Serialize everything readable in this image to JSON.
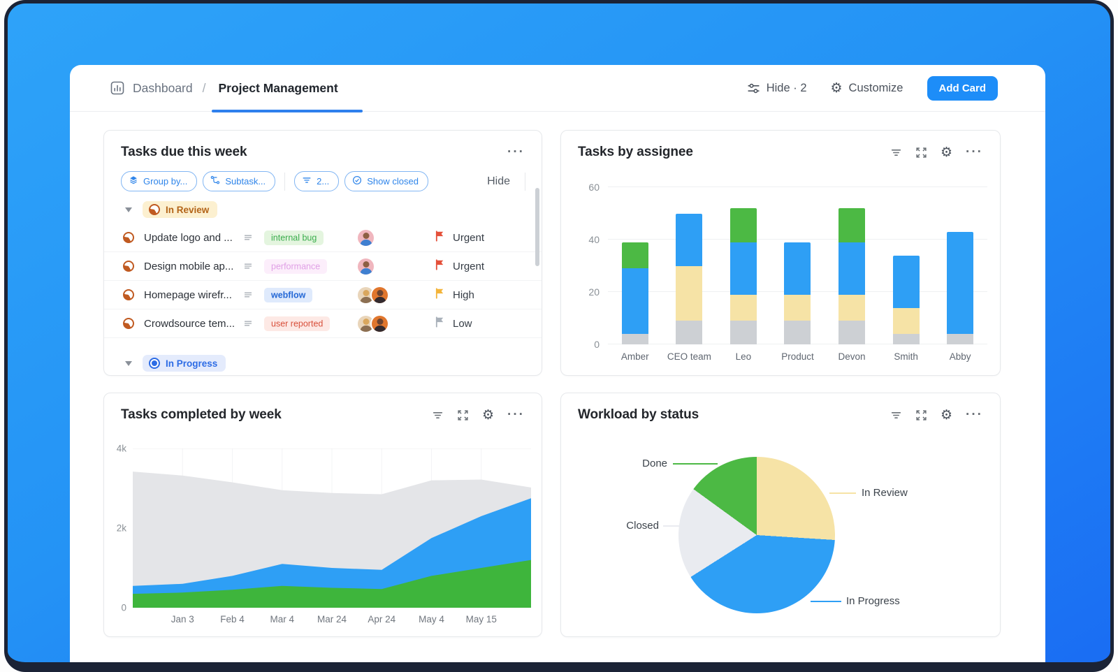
{
  "app": {
    "header": {
      "breadcrumb_root": "Dashboard",
      "breadcrumb_sep": "/",
      "breadcrumb_current": "Project Management",
      "hide_count_label": "Hide · 2",
      "customize_label": "Customize",
      "add_card_label": "Add Card"
    }
  },
  "icons": {
    "ellipsis": "···",
    "gear": "⚙"
  },
  "tasks_card": {
    "title": "Tasks due this week",
    "chips": [
      {
        "label": "Group by...",
        "icon": "layers-icon"
      },
      {
        "label": "Subtask...",
        "icon": "subtask-icon"
      },
      {
        "label": "2...",
        "icon": "filter-icon"
      },
      {
        "label": "Show closed",
        "icon": "check-circle-icon"
      }
    ],
    "hide_label": "Hide",
    "sections": [
      {
        "label": "In Review",
        "status_style": "review",
        "tasks": [
          {
            "name": "Update logo and ...",
            "tag": "internal bug",
            "tag_style": "green",
            "avatars": [
              "man-pink"
            ],
            "priority": "Urgent",
            "flag": "urgent"
          },
          {
            "name": "Design mobile ap...",
            "tag": "performance",
            "tag_style": "pink",
            "avatars": [
              "man-pink"
            ],
            "priority": "Urgent",
            "flag": "urgent"
          },
          {
            "name": "Homepage wirefr...",
            "tag": "webflow",
            "tag_style": "blue",
            "avatars": [
              "woman-blonde",
              "man-orange"
            ],
            "priority": "High",
            "flag": "high"
          },
          {
            "name": "Crowdsource tem...",
            "tag": "user reported",
            "tag_style": "red",
            "avatars": [
              "woman-blonde",
              "man-orange"
            ],
            "priority": "Low",
            "flag": "low"
          }
        ]
      },
      {
        "label": "In Progress",
        "status_style": "progress",
        "tasks": []
      }
    ]
  },
  "assignee_card": {
    "title": "Tasks by assignee"
  },
  "completed_card": {
    "title": "Tasks completed by week"
  },
  "workload_card": {
    "title": "Workload by status"
  },
  "chart_data": [
    {
      "type": "bar",
      "title": "Tasks by assignee",
      "stacked": true,
      "categories": [
        "Amber",
        "CEO team",
        "Leo",
        "Product",
        "Devon",
        "Smith",
        "Abby"
      ],
      "series": [
        {
          "name": "gray",
          "color": "#cdd0d4",
          "values": [
            4,
            9,
            9,
            9,
            9,
            4,
            4
          ]
        },
        {
          "name": "tan",
          "color": "#f6e3a6",
          "values": [
            0,
            21,
            10,
            10,
            10,
            10,
            0
          ]
        },
        {
          "name": "blue",
          "color": "#2e9ff5",
          "values": [
            25,
            20,
            20,
            20,
            20,
            20,
            39
          ]
        },
        {
          "name": "green",
          "color": "#4cb944",
          "values": [
            10,
            0,
            13,
            0,
            13,
            0,
            0
          ]
        }
      ],
      "yticks": [
        0,
        20,
        40,
        60
      ],
      "ylim": [
        0,
        60
      ],
      "grid": true,
      "legend": false
    },
    {
      "type": "area",
      "title": "Tasks completed by week",
      "x_labels": [
        "Jan 3",
        "Feb 4",
        "Mar 4",
        "Mar 24",
        "Apr 24",
        "May 4",
        "May 15"
      ],
      "note": "9 evenly spaced points; first/last are unlabeled edge points; values are cumulative visual tops in thousands of tasks",
      "series": [
        {
          "name": "total-gray",
          "color": "#e4e5e8",
          "values": [
            3.42,
            3.32,
            3.15,
            2.95,
            2.88,
            2.85,
            3.2,
            3.22,
            3.02
          ]
        },
        {
          "name": "blue",
          "color": "#2e9ff5",
          "values": [
            0.55,
            0.6,
            0.8,
            1.1,
            1.0,
            0.95,
            1.75,
            2.3,
            2.75
          ]
        },
        {
          "name": "green",
          "color": "#3eb53c",
          "values": [
            0.35,
            0.38,
            0.45,
            0.55,
            0.5,
            0.47,
            0.8,
            1.0,
            1.2
          ]
        }
      ],
      "yticks": [
        "4k",
        "2k",
        "0"
      ],
      "ylim_k": [
        0,
        4
      ],
      "grid": true,
      "legend": false
    },
    {
      "type": "pie",
      "title": "Workload by status",
      "start_angle_deg": 0,
      "slices": [
        {
          "label": "In Review",
          "value": 26,
          "color": "#f6e3a6"
        },
        {
          "label": "In Progress",
          "value": 40,
          "color": "#2e9ff5"
        },
        {
          "label": "Closed",
          "value": 19,
          "color": "#e9ebf0"
        },
        {
          "label": "Done",
          "value": 15,
          "color": "#4cb944"
        }
      ],
      "legend": "leader-line labels"
    }
  ]
}
